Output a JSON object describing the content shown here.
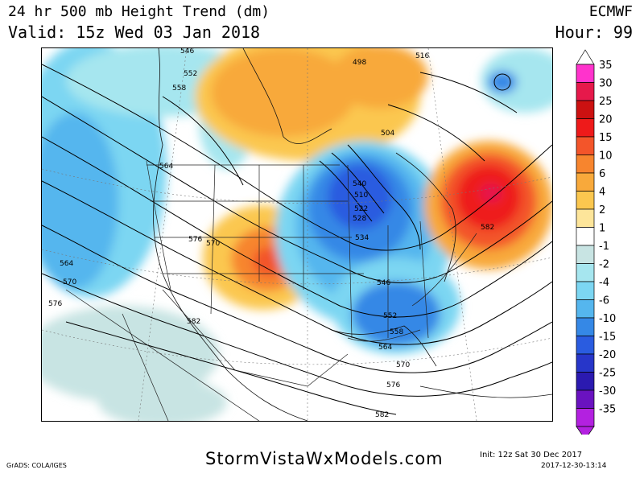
{
  "header": {
    "title": "24 hr 500 mb Height Trend (dm)",
    "valid": "Valid: 15z Wed 03 Jan 2018",
    "model": "ECMWF",
    "hour": "Hour: 99"
  },
  "colorbar": {
    "levels": [
      {
        "label": "35",
        "color": "#ff33cc"
      },
      {
        "label": "30",
        "color": "#e6194b"
      },
      {
        "label": "25",
        "color": "#cc1111"
      },
      {
        "label": "20",
        "color": "#ee1a1a"
      },
      {
        "label": "15",
        "color": "#f3552a"
      },
      {
        "label": "10",
        "color": "#f7852e"
      },
      {
        "label": "6",
        "color": "#f8a93b"
      },
      {
        "label": "4",
        "color": "#fbc74f"
      },
      {
        "label": "2",
        "color": "#fde59a"
      },
      {
        "label": "1",
        "color": "#ffffff"
      },
      {
        "label": "-1",
        "color": "#c8e4e3"
      },
      {
        "label": "-2",
        "color": "#a6e6ef"
      },
      {
        "label": "-4",
        "color": "#7cd6f2"
      },
      {
        "label": "-6",
        "color": "#55b6ee"
      },
      {
        "label": "-10",
        "color": "#3588e6"
      },
      {
        "label": "-15",
        "color": "#2a5ce0"
      },
      {
        "label": "-20",
        "color": "#2736c9"
      },
      {
        "label": "-25",
        "color": "#2b1ab0"
      },
      {
        "label": "-30",
        "color": "#6a12c0"
      },
      {
        "label": "-35",
        "color": "#b321e0"
      }
    ]
  },
  "contour_labels": [
    "546",
    "552",
    "558",
    "564",
    "570",
    "576",
    "582",
    "516",
    "504",
    "498",
    "540",
    "534",
    "528",
    "522",
    "510",
    "546",
    "552",
    "558",
    "564",
    "570",
    "576",
    "582",
    "570",
    "564",
    "576",
    "582"
  ],
  "footer": {
    "grads": "GrADS: COLA/IGES",
    "site": "StormVistaWxModels.com",
    "init": "Init: 12z Sat 30 Dec 2017",
    "stamp": "2017-12-30-13:14"
  }
}
